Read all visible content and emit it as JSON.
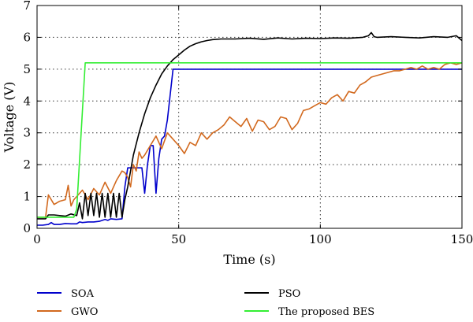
{
  "chart_data": {
    "type": "line",
    "title": "",
    "xlabel": "Time (s)",
    "ylabel": "Voltage (V)",
    "xlim": [
      0,
      150
    ],
    "ylim": [
      0,
      7
    ],
    "xticks": [
      0,
      50,
      100,
      150
    ],
    "yticks": [
      0,
      1,
      2,
      3,
      4,
      5,
      6,
      7
    ],
    "grid": true,
    "legend_position": "bottom",
    "series": [
      {
        "name": "SOA",
        "color": "#0000cc",
        "x": [
          0,
          2,
          4,
          5,
          6,
          8,
          10,
          12,
          14,
          15,
          16,
          18,
          20,
          22,
          24,
          25,
          26,
          28,
          30,
          31,
          32,
          33,
          34,
          35,
          36,
          37,
          38,
          39,
          40,
          41,
          42,
          43,
          44,
          45,
          46,
          47,
          48,
          50,
          60,
          80,
          100,
          120,
          140,
          150
        ],
        "y": [
          0.1,
          0.1,
          0.12,
          0.18,
          0.12,
          0.12,
          0.15,
          0.14,
          0.14,
          0.2,
          0.18,
          0.2,
          0.2,
          0.22,
          0.28,
          0.25,
          0.3,
          0.28,
          0.3,
          1.3,
          1.9,
          1.9,
          1.9,
          1.9,
          1.9,
          1.9,
          1.1,
          2.0,
          2.6,
          2.6,
          1.1,
          2.2,
          2.8,
          2.9,
          3.4,
          4.2,
          5.0,
          5.0,
          5.0,
          5.0,
          5.0,
          5.0,
          5.0,
          5.0
        ]
      },
      {
        "name": "GWO",
        "color": "#d2691e",
        "x": [
          0,
          3,
          4,
          5,
          6,
          8,
          10,
          11,
          12,
          13,
          14,
          16,
          18,
          20,
          22,
          24,
          26,
          27,
          28,
          30,
          31,
          32,
          33,
          34,
          35,
          36,
          37,
          38,
          40,
          42,
          44,
          46,
          48,
          50,
          52,
          54,
          56,
          58,
          60,
          62,
          64,
          66,
          68,
          70,
          72,
          74,
          76,
          78,
          80,
          82,
          84,
          86,
          88,
          90,
          92,
          94,
          96,
          98,
          100,
          102,
          104,
          106,
          108,
          110,
          112,
          114,
          116,
          118,
          120,
          122,
          124,
          126,
          128,
          130,
          132,
          134,
          136,
          138,
          140,
          142,
          144,
          146,
          148,
          150
        ],
        "y": [
          0.35,
          0.35,
          1.05,
          0.9,
          0.75,
          0.85,
          0.9,
          1.35,
          0.7,
          0.9,
          1.0,
          1.2,
          0.9,
          1.25,
          1.05,
          1.45,
          1.1,
          1.3,
          1.5,
          1.8,
          1.75,
          1.6,
          1.3,
          2.0,
          1.8,
          2.4,
          2.2,
          2.3,
          2.6,
          2.9,
          2.5,
          3.0,
          2.8,
          2.6,
          2.35,
          2.7,
          2.6,
          3.0,
          2.8,
          3.0,
          3.1,
          3.25,
          3.5,
          3.35,
          3.2,
          3.45,
          3.05,
          3.4,
          3.35,
          3.1,
          3.2,
          3.5,
          3.45,
          3.1,
          3.3,
          3.7,
          3.75,
          3.85,
          3.95,
          3.9,
          4.1,
          4.2,
          4.0,
          4.3,
          4.25,
          4.5,
          4.6,
          4.75,
          4.8,
          4.85,
          4.9,
          4.95,
          4.95,
          5.0,
          5.05,
          5.0,
          5.1,
          5.0,
          5.05,
          5.0,
          5.15,
          5.2,
          5.15,
          5.2
        ]
      },
      {
        "name": "PSO",
        "color": "#000000",
        "x": [
          0,
          3,
          4,
          6,
          8,
          10,
          12,
          14,
          15,
          16,
          17,
          18,
          19,
          20,
          21,
          22,
          23,
          24,
          25,
          26,
          27,
          28,
          29,
          30,
          31,
          32,
          33,
          34,
          36,
          38,
          40,
          42,
          44,
          46,
          48,
          50,
          52,
          54,
          56,
          58,
          60,
          62,
          65,
          70,
          75,
          80,
          85,
          90,
          95,
          100,
          105,
          110,
          115,
          117,
          118,
          119,
          120,
          125,
          130,
          135,
          140,
          145,
          148,
          150
        ],
        "y": [
          0.3,
          0.3,
          0.42,
          0.42,
          0.4,
          0.38,
          0.45,
          0.4,
          0.8,
          0.3,
          1.1,
          0.4,
          1.1,
          0.4,
          1.1,
          0.35,
          1.1,
          0.35,
          1.1,
          0.35,
          1.1,
          0.35,
          1.1,
          0.35,
          0.9,
          1.3,
          1.8,
          2.3,
          3.0,
          3.6,
          4.1,
          4.5,
          4.85,
          5.1,
          5.3,
          5.45,
          5.6,
          5.72,
          5.8,
          5.86,
          5.9,
          5.93,
          5.95,
          5.95,
          5.97,
          5.94,
          5.98,
          5.95,
          5.97,
          5.96,
          5.98,
          5.97,
          6.0,
          6.05,
          6.15,
          6.02,
          6.0,
          6.02,
          6.0,
          5.98,
          6.02,
          6.0,
          6.05,
          5.9
        ]
      },
      {
        "name": "The proposed BES",
        "color": "#33ee33",
        "x": [
          0,
          13,
          14,
          17,
          150
        ],
        "y": [
          0.35,
          0.35,
          0.6,
          5.2,
          5.2
        ]
      }
    ]
  }
}
